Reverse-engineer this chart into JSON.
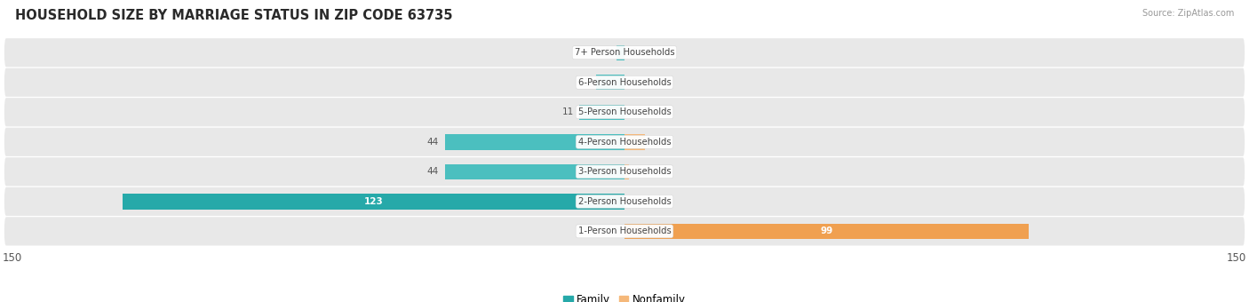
{
  "title": "HOUSEHOLD SIZE BY MARRIAGE STATUS IN ZIP CODE 63735",
  "source": "Source: ZipAtlas.com",
  "categories": [
    "7+ Person Households",
    "6-Person Households",
    "5-Person Households",
    "4-Person Households",
    "3-Person Households",
    "2-Person Households",
    "1-Person Households"
  ],
  "family_values": [
    2,
    7,
    11,
    44,
    44,
    123,
    0
  ],
  "nonfamily_values": [
    0,
    0,
    0,
    5,
    1,
    0,
    99
  ],
  "family_color": "#4bbfbf",
  "family_color_large": "#26a9a9",
  "nonfamily_color": "#f5b87a",
  "nonfamily_color_large": "#f0a050",
  "xlim": 150,
  "bar_height": 0.52,
  "title_fontsize": 10.5,
  "label_fontsize": 7.5,
  "tick_fontsize": 8.5,
  "row_bg": "#e8e8e8",
  "fig_bg": "#ffffff"
}
